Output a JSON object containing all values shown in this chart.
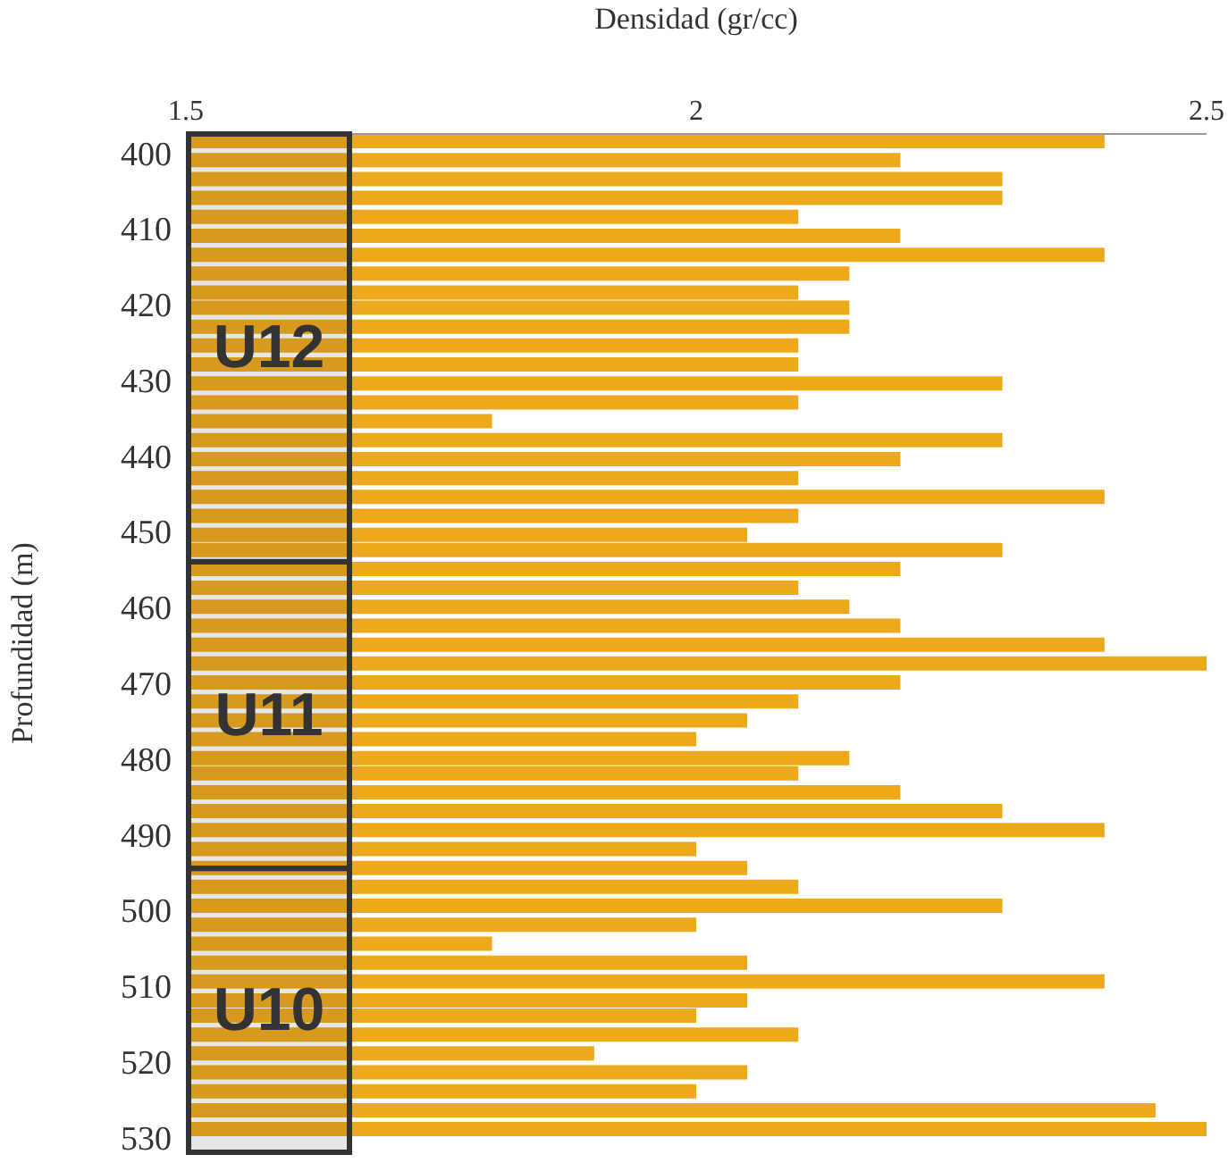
{
  "chart_data": {
    "type": "bar",
    "orientation": "horizontal",
    "xlabel": "Densidad (gr/cc)",
    "ylabel": "Profundidad (m)",
    "x": [
      398.5,
      401,
      403.5,
      406,
      408.5,
      411,
      413.5,
      416,
      418.5,
      420.5,
      423,
      425.5,
      428,
      430.5,
      433,
      435.5,
      438,
      440.5,
      443,
      445.5,
      448,
      450.5,
      452.5,
      455,
      457.5,
      460,
      462.5,
      465,
      467.5,
      470,
      472.5,
      475,
      477.5,
      480,
      482,
      484.5,
      487,
      489.5,
      492,
      494.5,
      497,
      499.5,
      502,
      504.5,
      507,
      509.5,
      512,
      514,
      516.5,
      519,
      521.5,
      524,
      526.5,
      529
    ],
    "values": [
      2.4,
      2.2,
      2.3,
      2.3,
      2.1,
      2.2,
      2.4,
      2.15,
      2.1,
      2.15,
      2.15,
      2.1,
      2.1,
      2.3,
      2.1,
      1.8,
      2.3,
      2.2,
      2.1,
      2.4,
      2.1,
      2.05,
      2.3,
      2.2,
      2.1,
      2.15,
      2.2,
      2.4,
      2.5,
      2.2,
      2.1,
      2.05,
      2.0,
      2.15,
      2.1,
      2.2,
      2.3,
      2.4,
      2.0,
      2.05,
      2.1,
      2.3,
      2.0,
      1.8,
      2.05,
      2.4,
      2.05,
      2.0,
      2.1,
      1.9,
      2.05,
      2.0,
      2.45,
      2.5
    ],
    "color": "#eea81c",
    "xlim": [
      1.5,
      2.5
    ],
    "xticks": [
      1.5,
      2,
      2.5
    ],
    "ylim": [
      532,
      397.5
    ],
    "yticks": [
      400,
      410,
      420,
      430,
      440,
      450,
      460,
      470,
      480,
      490,
      500,
      510,
      520,
      530
    ],
    "bands": [
      {
        "axis": "y",
        "from": 397.5,
        "to": 454,
        "label": "U12",
        "color": "#333333"
      },
      {
        "axis": "y",
        "from": 454,
        "to": 494.5,
        "label": "U11",
        "color": "#333333"
      },
      {
        "axis": "y",
        "from": 494.5,
        "to": 532,
        "label": "U10",
        "color": "#333333"
      }
    ],
    "grid": false,
    "legend": false
  }
}
